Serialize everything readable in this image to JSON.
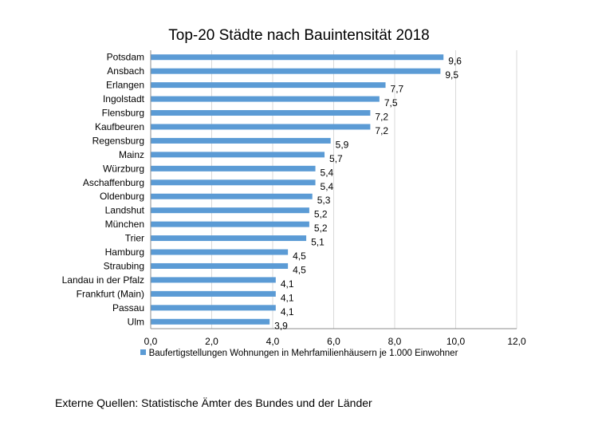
{
  "chart_data": {
    "type": "bar",
    "orientation": "horizontal",
    "title": "Top-20 Städte nach Bauintensität 2018",
    "categories": [
      "Potsdam",
      "Ansbach",
      "Erlangen",
      "Ingolstadt",
      "Flensburg",
      "Kaufbeuren",
      "Regensburg",
      "Mainz",
      "Würzburg",
      "Aschaffenburg",
      "Oldenburg",
      "Landshut",
      "München",
      "Trier",
      "Hamburg",
      "Straubing",
      "Landau in der Pfalz",
      "Frankfurt (Main)",
      "Passau",
      "Ulm"
    ],
    "series": [
      {
        "name": "Baufertigstellungen Wohnungen in Mehrfamilienhäusern je 1.000 Einwohner",
        "values": [
          9.6,
          9.5,
          7.7,
          7.5,
          7.2,
          7.2,
          5.9,
          5.7,
          5.4,
          5.4,
          5.3,
          5.2,
          5.2,
          5.1,
          4.5,
          4.5,
          4.1,
          4.1,
          4.1,
          3.9
        ],
        "data_labels": [
          "9,6",
          "9,5",
          "7,7",
          "7,5",
          "7,2",
          "7,2",
          "5,9",
          "5,7",
          "5,4",
          "5,4",
          "5,3",
          "5,2",
          "5,2",
          "5,1",
          "4,5",
          "4,5",
          "4,1",
          "4,1",
          "4,1",
          "3,9"
        ],
        "color": "#5b9bd5"
      }
    ],
    "xlim": [
      0,
      12
    ],
    "xticks": [
      0,
      2,
      4,
      6,
      8,
      10,
      12
    ],
    "xtick_labels": [
      "0,0",
      "2,0",
      "4,0",
      "6,0",
      "8,0",
      "10,0",
      "12,0"
    ],
    "grid": "vertical",
    "grid_color": "#d9d9d9",
    "legend_position": "bottom"
  },
  "source_note": "Externe Quellen: Statistische Ämter des Bundes und der Länder"
}
